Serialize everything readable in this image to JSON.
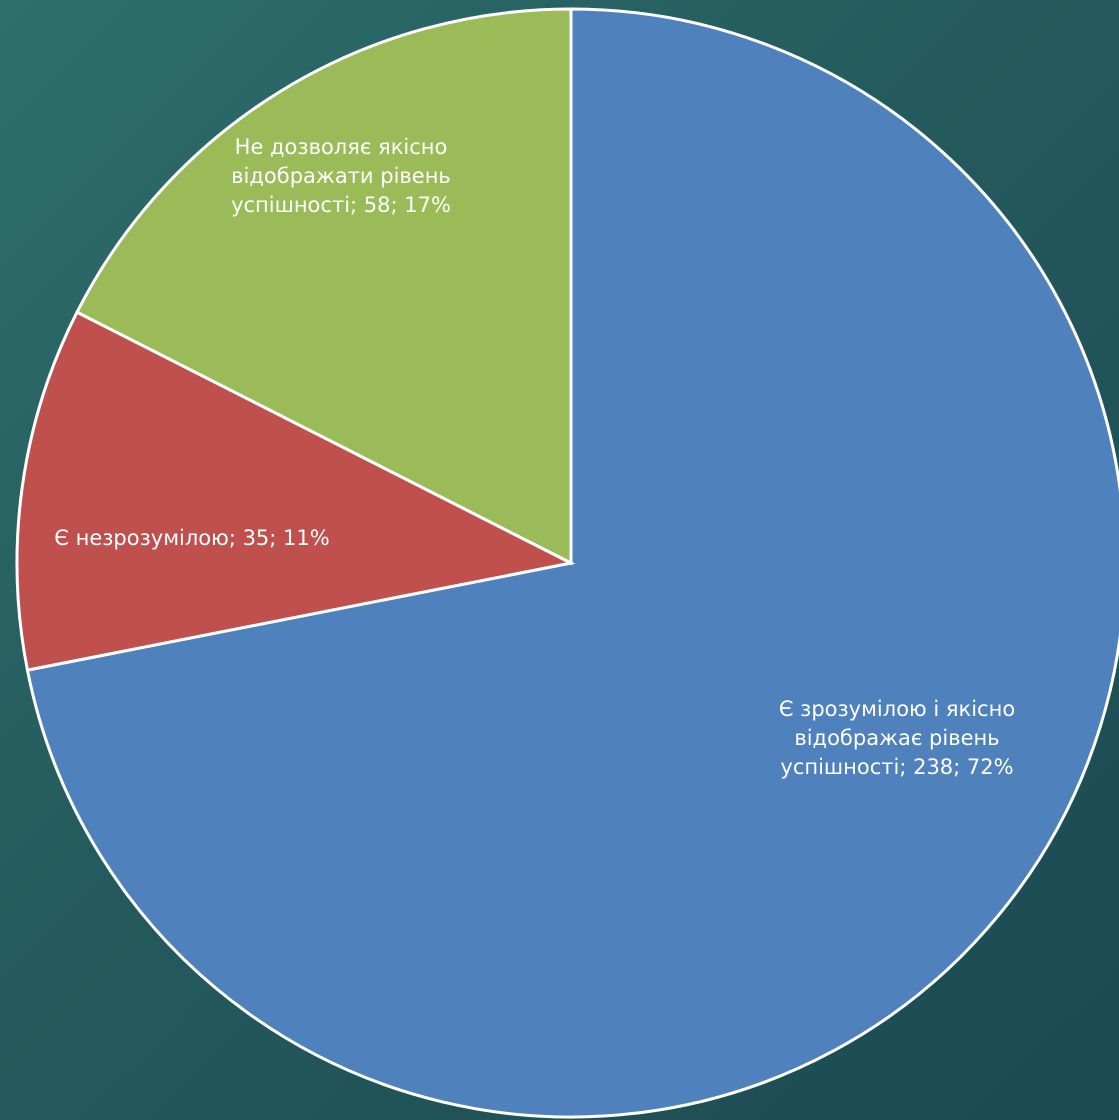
{
  "chart_data": {
    "type": "pie",
    "title": "",
    "start_angle_deg": 0,
    "direction": "clockwise",
    "label_format": "{name}; {value}; {percent}",
    "slices": [
      {
        "name": "Є зрозумілою і якісно відображає рівень успішності",
        "value": 238,
        "percent_label": "72%",
        "color": "#4f81bd",
        "label_lines": [
          "Є зрозумілою і якісно",
          "відображає рівень",
          "успішності; 238; 72%"
        ]
      },
      {
        "name": "Є незрозумілою",
        "value": 35,
        "percent_label": "11%",
        "color": "#c0504d",
        "label_lines": [
          "Є незрозумілою; 35; 11%"
        ]
      },
      {
        "name": "Не дозволяє якісно відображати рівень успішності",
        "value": 58,
        "percent_label": "17%",
        "color": "#9bbb59",
        "label_lines": [
          "Не дозволяє якісно",
          "відображати рівень",
          "успішності; 58; 17%"
        ]
      }
    ],
    "legend": "none"
  }
}
